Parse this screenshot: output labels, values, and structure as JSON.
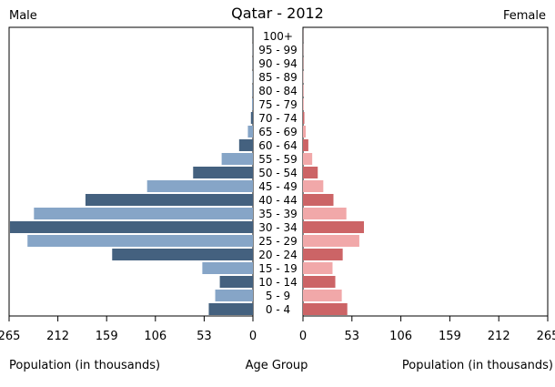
{
  "chart_data": {
    "type": "bar",
    "title": "Qatar - 2012",
    "left_label": "Male",
    "right_label": "Female",
    "center_label": "Age Group",
    "xlabel_left": "Population (in thousands)",
    "xlabel_right": "Population (in thousands)",
    "xlim": [
      0,
      265
    ],
    "ticks": [
      265,
      212,
      159,
      106,
      53,
      0
    ],
    "ticks_right": [
      0,
      53,
      106,
      159,
      212,
      265
    ],
    "categories": [
      "100+",
      "95 - 99",
      "90 - 94",
      "85 - 89",
      "80 - 84",
      "75 - 79",
      "70 - 74",
      "65 - 69",
      "60 - 64",
      "55 - 59",
      "50 - 54",
      "45 - 49",
      "40 - 44",
      "35 - 39",
      "30 - 34",
      "25 - 29",
      "20 - 24",
      "15 - 19",
      "10 - 14",
      "5 - 9",
      "0 - 4"
    ],
    "series": [
      {
        "name": "Male",
        "values": [
          0.1,
          0.2,
          0.3,
          0.4,
          0.6,
          1.0,
          2.2,
          5.5,
          15,
          34,
          65,
          115,
          182,
          238,
          264,
          245,
          153,
          55,
          36,
          41,
          48
        ]
      },
      {
        "name": "Female",
        "values": [
          0.1,
          0.2,
          0.3,
          0.4,
          0.5,
          0.8,
          1.5,
          3.0,
          5.8,
          10,
          16,
          22,
          33,
          47,
          66,
          61,
          43,
          32,
          35,
          42,
          48
        ]
      }
    ],
    "colors": {
      "male_dark": "#44617f",
      "male_light": "#86a5c7",
      "female_dark": "#cc6466",
      "female_light": "#f1a8a9",
      "axis": "#000000"
    },
    "grid": false
  }
}
